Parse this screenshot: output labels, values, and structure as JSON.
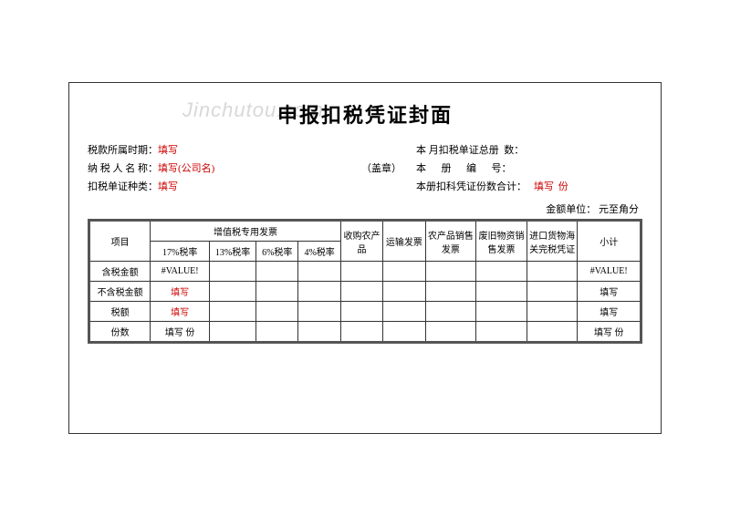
{
  "watermark": "Jinchutou.com",
  "title": "申报扣税凭证封面",
  "headerLeft": {
    "row1_label": "税款所属时期：",
    "row1_value": "填写",
    "row2_label": "纳 税 人 名 称：",
    "row2_value": "填写(公司名)",
    "row3_label": "扣税单证种类：",
    "row3_value": "填写"
  },
  "headerMid": "（盖章）",
  "headerRight": {
    "row1": "本 月扣税单证总册  数：",
    "row2": "本      册      编      号：",
    "row3_label": "本册扣科凭证份数合计：",
    "row3_value": "填写",
    "row3_suffix": "份"
  },
  "unitText": "金额单位：  元至角分",
  "columns": {
    "proj": "项目",
    "vatGroup": "增值税专用发票",
    "rate17": "17%税率",
    "rate13": "13%税率",
    "rate6": "6%税率",
    "rate4": "4%税率",
    "nong": "收购农产品",
    "yun": "运输发票",
    "xiao": "农产品销售发票",
    "fei": "废旧物资销售发票",
    "jin": "进口货物海关完税凭证",
    "xj": "小计"
  },
  "rows": {
    "r1_label": "含税金额",
    "r1_c1": "#VALUE!",
    "r1_xj": "#VALUE!",
    "r2_label": "不含税金额",
    "r2_c1": "填写",
    "r2_xj": "填写",
    "r3_label": "税额",
    "r3_c1": "填写",
    "r3_xj": "填写",
    "r4_label": "份数",
    "r4_c1": "填写 份",
    "r4_xj": "填写 份"
  },
  "colors": {
    "red": "#c00",
    "border": "#333",
    "borderThick": "#555",
    "watermark": "#d8d8d8"
  }
}
